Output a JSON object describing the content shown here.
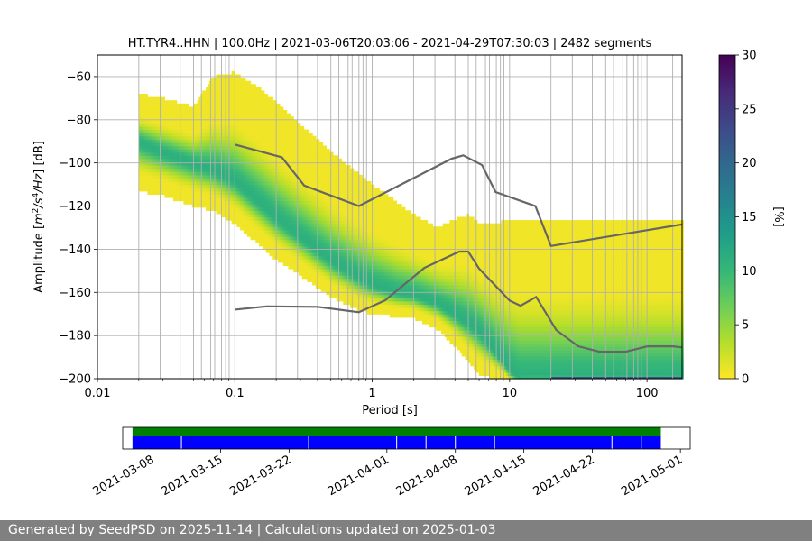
{
  "chart_data": {
    "type": "heatmap",
    "title": "HT.TYR4..HHN | 100.0Hz | 2021-03-06T20:03:06 - 2021-04-29T07:30:03 | 2482 segments",
    "xlabel": "Period [s]",
    "ylabel_parts": [
      "Amplitude [",
      "m",
      "2",
      "/s",
      "4",
      "/Hz",
      "] [dB]"
    ],
    "xscale": "log",
    "xlim": [
      0.01,
      180
    ],
    "ylim": [
      -200,
      -50
    ],
    "x_ticks": [
      {
        "value": 0.01,
        "label": "0.01"
      },
      {
        "value": 0.1,
        "label": "0.1"
      },
      {
        "value": 1,
        "label": "1"
      },
      {
        "value": 10,
        "label": "10"
      },
      {
        "value": 100,
        "label": "100"
      }
    ],
    "y_ticks": [
      {
        "value": -60,
        "label": "−60"
      },
      {
        "value": -80,
        "label": "−80"
      },
      {
        "value": -100,
        "label": "−100"
      },
      {
        "value": -120,
        "label": "−120"
      },
      {
        "value": -140,
        "label": "−140"
      },
      {
        "value": -160,
        "label": "−160"
      },
      {
        "value": -180,
        "label": "−180"
      },
      {
        "value": -200,
        "label": "−200"
      }
    ],
    "grid": true,
    "period_grid_lines": [
      0.02,
      0.0286,
      0.04,
      0.05,
      0.0571,
      0.0667,
      0.0714,
      0.08,
      0.0857,
      0.0909,
      0.1,
      0.2,
      0.286,
      0.4,
      0.5,
      0.571,
      0.667,
      0.714,
      0.8,
      0.857,
      0.909,
      1,
      2,
      2.86,
      4,
      5,
      5.71,
      6.67,
      7.14,
      8,
      8.57,
      9.09,
      10,
      20,
      28.6,
      40,
      50,
      57.1,
      66.7,
      71.4,
      80,
      85.7,
      90.9,
      100,
      153.8
    ],
    "density_ridge": {
      "description": "modal PSD (highest probability) path",
      "period": [
        0.02,
        0.03,
        0.05,
        0.07,
        0.1,
        0.15,
        0.2,
        0.3,
        0.5,
        0.8,
        1,
        1.5,
        2,
        3,
        4,
        5,
        6,
        8,
        10,
        12,
        15,
        20,
        50,
        100,
        180
      ],
      "db": [
        -90,
        -95,
        -100,
        -103,
        -108,
        -118,
        -125,
        -134,
        -145,
        -153,
        -156,
        -160,
        -161,
        -165,
        -170,
        -174,
        -178,
        -188,
        -196,
        -200,
        -200,
        -200,
        -200,
        -200,
        -200
      ],
      "upper_db": [
        -68,
        -70,
        -74,
        -60,
        -58,
        -65,
        -72,
        -82,
        -95,
        -105,
        -110,
        -118,
        -124,
        -130,
        -126,
        -124,
        -128,
        -128,
        -126,
        -126,
        -126,
        -126,
        -126,
        -126,
        -126
      ],
      "lower_db": [
        -113,
        -115,
        -120,
        -122,
        -128,
        -138,
        -145,
        -152,
        -162,
        -168,
        -170,
        -171,
        -172,
        -177,
        -185,
        -192,
        -198,
        -200,
        -200,
        -200,
        -200,
        -200,
        -200,
        -200,
        -200
      ]
    },
    "reference_curves": [
      {
        "name": "NHNM",
        "period": [
          0.1,
          0.22,
          0.32,
          0.8,
          3.8,
          4.6,
          6.3,
          7.9,
          15.4,
          20,
          180
        ],
        "db": [
          -91.5,
          -97.4,
          -110.5,
          -120,
          -98,
          -96.5,
          -101,
          -113.5,
          -120,
          -138.5,
          -128.5
        ]
      },
      {
        "name": "NLNM",
        "period": [
          0.1,
          0.17,
          0.4,
          0.8,
          1.24,
          2.4,
          4.3,
          5,
          6,
          10,
          12,
          15.6,
          21.9,
          31.6,
          45,
          70,
          101,
          154,
          180
        ],
        "db": [
          -168,
          -166.5,
          -166.7,
          -169.2,
          -163.7,
          -148.6,
          -141.1,
          -141.1,
          -149,
          -163.8,
          -166.2,
          -162.1,
          -177.5,
          -185,
          -187.5,
          -187.5,
          -185,
          -185,
          -185.5
        ]
      }
    ],
    "colorbar": {
      "label": "[%]",
      "min": 0,
      "max": 30,
      "ticks": [
        "0",
        "5",
        "10",
        "15",
        "20",
        "25",
        "30"
      ],
      "colors": [
        "#fde725",
        "#b5de2b",
        "#6ece58",
        "#35b779",
        "#1f9e89",
        "#26828e",
        "#31688e",
        "#3e4989",
        "#482878",
        "#440154"
      ]
    },
    "coverage": {
      "date_ticks": [
        "2021-03-08",
        "2021-03-15",
        "2021-03-22",
        "2021-04-01",
        "2021-04-08",
        "2021-04-15",
        "2021-04-22",
        "2021-05-01"
      ],
      "range_start": "2021-03-05",
      "range_end": "2021-05-02",
      "data_start": "2021-03-06",
      "data_end": "2021-04-29",
      "gaps": [
        "2021-03-11",
        "2021-03-24",
        "2021-04-02",
        "2021-04-05",
        "2021-04-08",
        "2021-04-12",
        "2021-04-24",
        "2021-04-27"
      ],
      "top_color": "#008000",
      "bottom_color": "#0000ff"
    }
  },
  "footer": {
    "text": "Generated by SeedPSD on 2025-11-14 | Calculations updated on 2025-01-03"
  }
}
